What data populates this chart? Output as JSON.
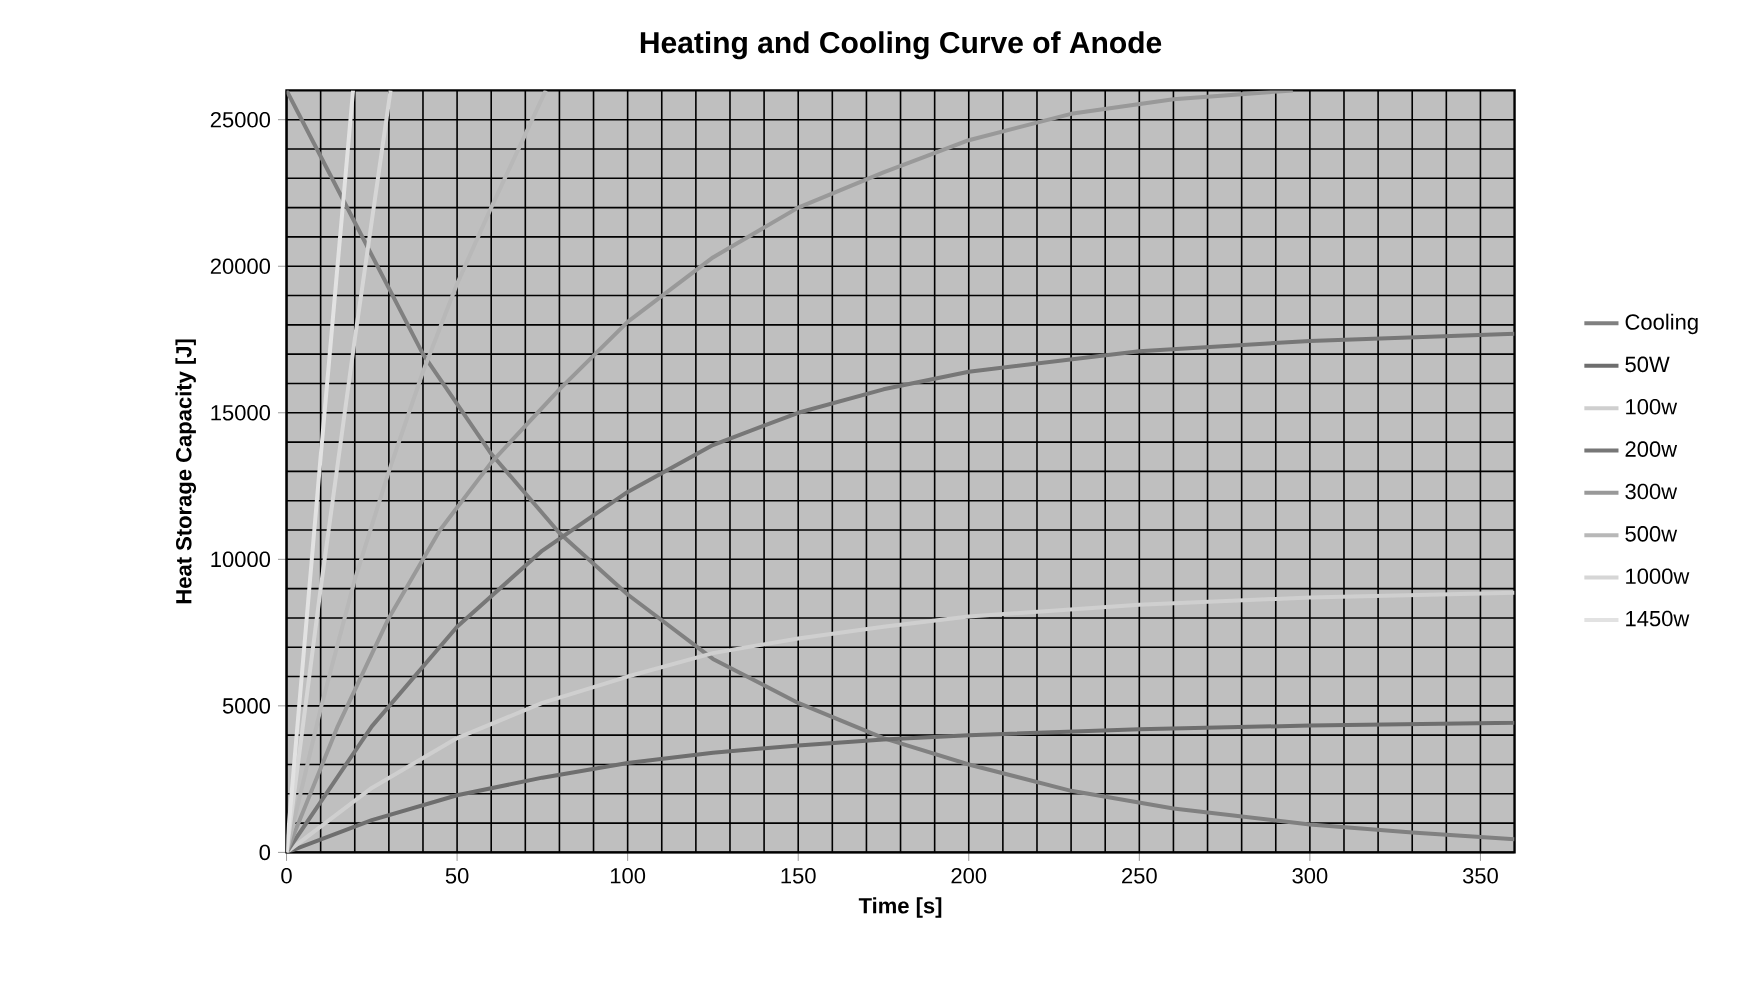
{
  "chart_data": {
    "type": "line",
    "title": "Heating and Cooling Curve of Anode",
    "xlabel": "Time [s]",
    "ylabel": "Heat Storage Capacity [J]",
    "xlim": [
      0,
      360
    ],
    "ylim": [
      0,
      26000
    ],
    "xticks": [
      0,
      50,
      100,
      150,
      200,
      250,
      300,
      350
    ],
    "yticks": [
      0,
      5000,
      10000,
      15000,
      20000,
      25000
    ],
    "grid": true,
    "legend": "right",
    "marker": "none",
    "line_style": "solid",
    "series": [
      {
        "name": "Cooling",
        "color": "#808080",
        "x": [
          0,
          20,
          40,
          60,
          80,
          100,
          125,
          150,
          175,
          200,
          230,
          260,
          300,
          330,
          360
        ],
        "values": [
          26000,
          21500,
          17000,
          13600,
          10900,
          8800,
          6600,
          5100,
          3900,
          3000,
          2100,
          1500,
          950,
          680,
          450
        ]
      },
      {
        "name": "50W",
        "color": "#6e6e6e",
        "x": [
          0,
          25,
          50,
          75,
          100,
          125,
          150,
          175,
          200,
          250,
          300,
          360
        ],
        "values": [
          0,
          1100,
          1950,
          2550,
          3050,
          3400,
          3650,
          3850,
          4000,
          4200,
          4330,
          4420
        ]
      },
      {
        "name": "100w",
        "color": "#cfcfcf",
        "x": [
          0,
          25,
          50,
          75,
          100,
          125,
          150,
          175,
          200,
          250,
          300,
          360
        ],
        "values": [
          0,
          2200,
          3900,
          5100,
          6000,
          6800,
          7300,
          7700,
          8050,
          8450,
          8700,
          8860
        ]
      },
      {
        "name": "200w",
        "color": "#777777",
        "x": [
          0,
          25,
          50,
          75,
          100,
          125,
          150,
          175,
          200,
          250,
          300,
          360
        ],
        "values": [
          0,
          4300,
          7700,
          10300,
          12300,
          13900,
          15000,
          15800,
          16400,
          17100,
          17450,
          17700
        ]
      },
      {
        "name": "300w",
        "color": "#999999",
        "x": [
          0,
          15,
          30,
          45,
          60,
          80,
          100,
          125,
          150,
          175,
          200,
          230,
          260,
          295
        ],
        "values": [
          0,
          4300,
          8000,
          11000,
          13300,
          15800,
          18100,
          20300,
          22000,
          23200,
          24300,
          25200,
          25700,
          26000
        ]
      },
      {
        "name": "500w",
        "color": "#b8b8b8",
        "x": [
          0,
          10,
          20,
          30,
          40,
          50,
          60,
          70,
          76
        ],
        "values": [
          0,
          4900,
          9300,
          13000,
          16400,
          19400,
          22000,
          24500,
          26000
        ]
      },
      {
        "name": "1000w",
        "color": "#d6d6d6",
        "x": [
          0,
          10,
          20,
          30.5
        ],
        "values": [
          0,
          9000,
          17500,
          26000
        ]
      },
      {
        "name": "1450w",
        "color": "#e2e2e2",
        "x": [
          0,
          10,
          19.5
        ],
        "values": [
          0,
          13500,
          26000
        ]
      }
    ]
  }
}
